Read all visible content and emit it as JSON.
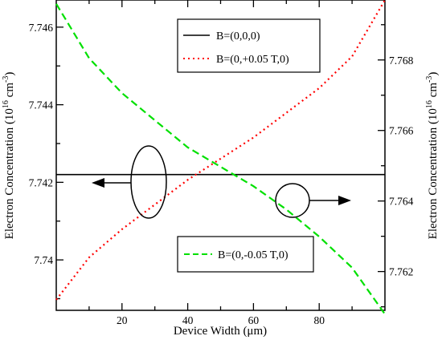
{
  "chart_data": {
    "type": "line",
    "xlabel": "Device Width (μm)",
    "ylabel_left": {
      "base": "Electron Concentration (10",
      "exp": "16",
      "mid": " cm",
      "exp2": "-3",
      "end": ")"
    },
    "ylabel_right": {
      "base": "Electron Concentration (10",
      "exp": "16",
      "mid": " cm",
      "exp2": "-3",
      "end": ")"
    },
    "xlim": [
      0,
      100
    ],
    "ylim_left": [
      7.7387,
      7.7467
    ],
    "ylim_right": [
      7.7609,
      7.7697
    ],
    "x_ticks": [
      20,
      40,
      60,
      80
    ],
    "x_tick_labels": [
      "20",
      "40",
      "60",
      "80"
    ],
    "y_left_ticks": [
      7.74,
      7.742,
      7.744,
      7.746
    ],
    "y_left_tick_labels": [
      "7.74",
      "7.742",
      "7.744",
      "7.746"
    ],
    "y_right_ticks": [
      7.762,
      7.764,
      7.766,
      7.768
    ],
    "y_right_tick_labels": [
      "7.762",
      "7.764",
      "7.766",
      "7.768"
    ],
    "series": [
      {
        "name": "B=(0,0,0)",
        "axis": "left",
        "color": "#000000",
        "dash": "solid",
        "x": [
          0,
          100
        ],
        "y": [
          7.7422,
          7.7422
        ]
      },
      {
        "name": "B=(0,+0.05 T,0)",
        "axis": "right",
        "color": "#ff0000",
        "dash": "dotted",
        "x": [
          0,
          10,
          20,
          30,
          40,
          50,
          60,
          70,
          80,
          90,
          100
        ],
        "y": [
          7.7612,
          7.7624,
          7.7632,
          7.7639,
          7.7646,
          7.7652,
          7.7658,
          7.7665,
          7.7672,
          7.7681,
          7.7697
        ]
      },
      {
        "name": "B=(0,-0.05 T,0)",
        "axis": "left",
        "color": "#00e000",
        "dash": "dashed",
        "x": [
          0,
          10,
          20,
          30,
          40,
          50,
          60,
          70,
          80,
          90,
          100
        ],
        "y": [
          7.7466,
          7.7452,
          7.7443,
          7.7436,
          7.7429,
          7.7424,
          7.7419,
          7.7413,
          7.7406,
          7.7398,
          7.7386
        ]
      }
    ],
    "legend": [
      {
        "label": "B=(0,0,0)",
        "position": "upper-right"
      },
      {
        "label": "B=(0,+0.05 T,0)",
        "position": "upper-right"
      },
      {
        "label": "B=(0,-0.05 T,0)",
        "position": "lower-right"
      }
    ],
    "annotations": [
      {
        "kind": "ellipse-arrow",
        "points_to": "left axis"
      },
      {
        "kind": "ellipse-arrow",
        "points_to": "right axis"
      }
    ]
  }
}
